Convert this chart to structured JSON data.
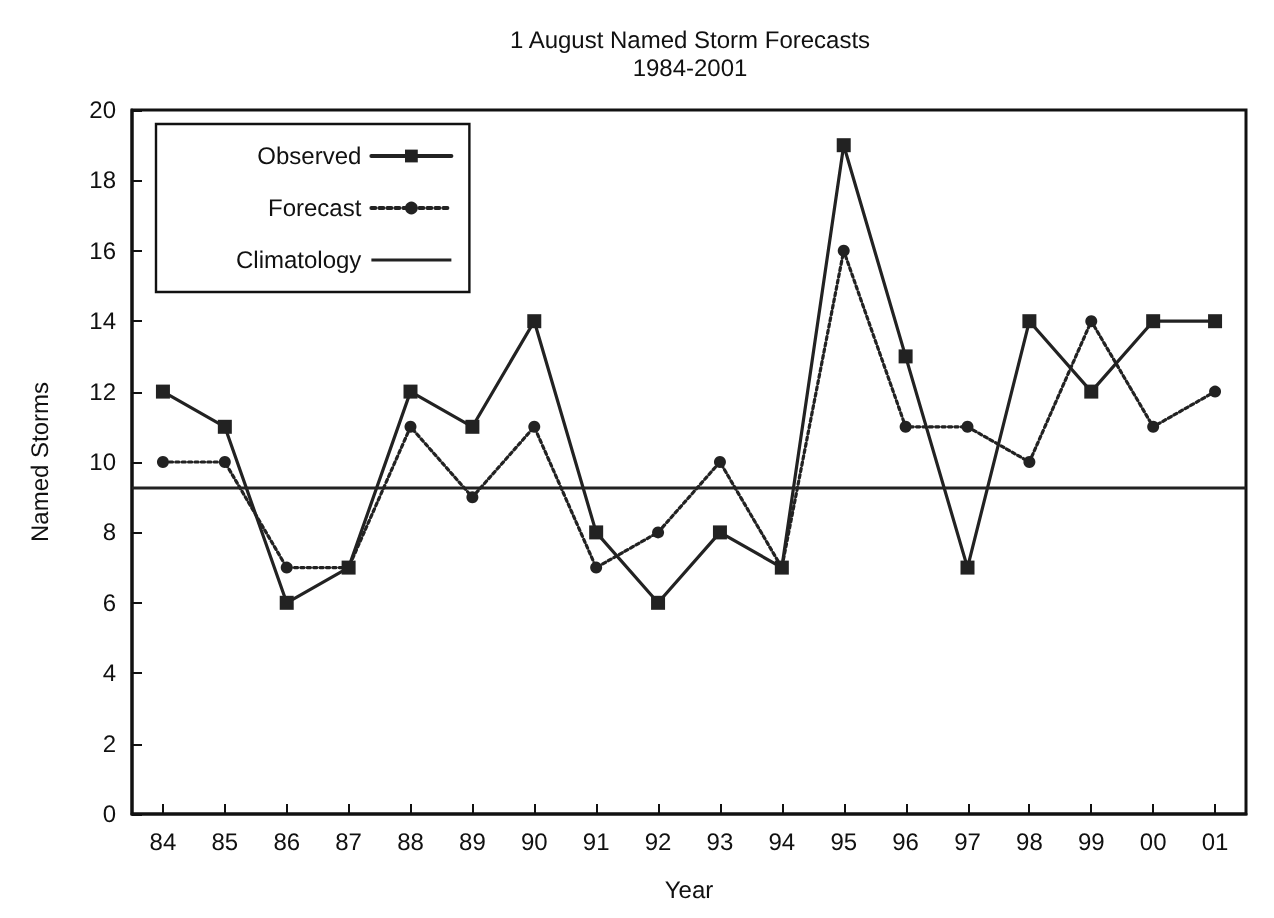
{
  "chart_data": {
    "type": "line",
    "title": "1 August Named Storm Forecasts\n1984-2001",
    "xlabel": "Year",
    "ylabel": "Named Storms",
    "categories": [
      "84",
      "85",
      "86",
      "87",
      "88",
      "89",
      "90",
      "91",
      "92",
      "93",
      "94",
      "95",
      "96",
      "97",
      "98",
      "99",
      "00",
      "01"
    ],
    "series": [
      {
        "name": "Observed",
        "color": "#222222",
        "marker": "square",
        "line_style": "solid",
        "values": [
          12,
          11,
          6,
          7,
          12,
          11,
          14,
          8,
          6,
          8,
          7,
          19,
          13,
          7,
          14,
          12,
          14,
          14
        ]
      },
      {
        "name": "Forecast",
        "color": "#222222",
        "marker": "circle",
        "line_style": "dotted",
        "values": [
          10,
          10,
          7,
          7,
          11,
          9,
          11,
          7,
          8,
          10,
          7,
          16,
          11,
          11,
          10,
          14,
          11,
          12
        ]
      }
    ],
    "ref_lines": [
      {
        "axis": "y",
        "value": 9.3,
        "label": "Climatology",
        "color": "#222222",
        "line_style": "solid"
      }
    ],
    "ylim": [
      0,
      20
    ],
    "yticks": [
      0,
      2,
      4,
      6,
      8,
      10,
      12,
      14,
      16,
      18,
      20
    ],
    "grid": false,
    "legend": "top left"
  }
}
